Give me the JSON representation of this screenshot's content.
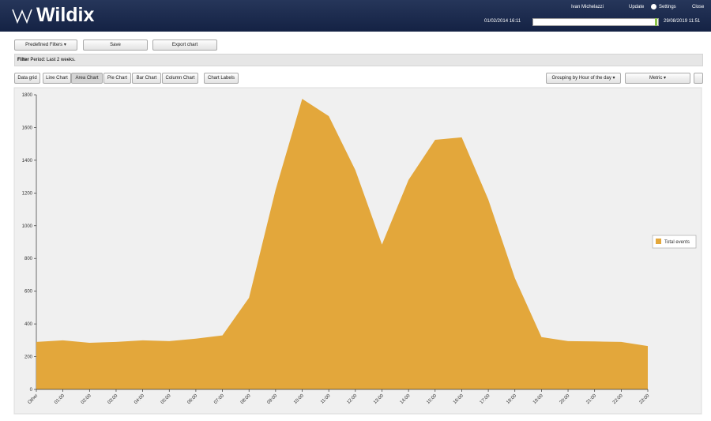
{
  "header": {
    "logo": "Wildix",
    "user": "Ivan Michelazzi",
    "links": [
      "Update",
      "Settings",
      "Close"
    ],
    "range_start": "01/02/2014 16:11",
    "range_end": "29/08/2019 11:51"
  },
  "toolbar": {
    "buttons": [
      "Predefined Filters",
      "Save",
      "Export chart"
    ]
  },
  "filter": {
    "label": "Filter",
    "text": "Period: Last 2 weeks."
  },
  "tabs": [
    "Data grid",
    "Line Chart",
    "Area Chart",
    "Pie Chart",
    "Bar Chart",
    "Column Chart"
  ],
  "chart_labels": "Chart Labels",
  "dropdowns": [
    "Grouping by Hour of the day",
    "Metric"
  ],
  "chart_data": {
    "type": "area",
    "categories": [
      "Other",
      "01:00",
      "02:00",
      "03:00",
      "04:00",
      "05:00",
      "06:00",
      "07:00",
      "08:00",
      "09:00",
      "10:00",
      "11:00",
      "12:00",
      "13:00",
      "14:00",
      "15:00",
      "16:00",
      "17:00",
      "18:00",
      "19:00",
      "20:00",
      "21:00",
      "22:00",
      "23:00"
    ],
    "series": [
      {
        "name": "Total events",
        "color": "#e3a73b",
        "values": [
          290,
          300,
          285,
          290,
          300,
          295,
          310,
          330,
          560,
          1220,
          1775,
          1670,
          1340,
          885,
          1280,
          1525,
          1540,
          1160,
          680,
          320,
          295,
          293,
          290,
          265
        ]
      }
    ],
    "ylim": [
      0,
      1800
    ],
    "yticks": [
      0,
      200,
      400,
      600,
      800,
      1000,
      1200,
      1400,
      1600,
      1800
    ],
    "grid": false,
    "legend": "right"
  }
}
